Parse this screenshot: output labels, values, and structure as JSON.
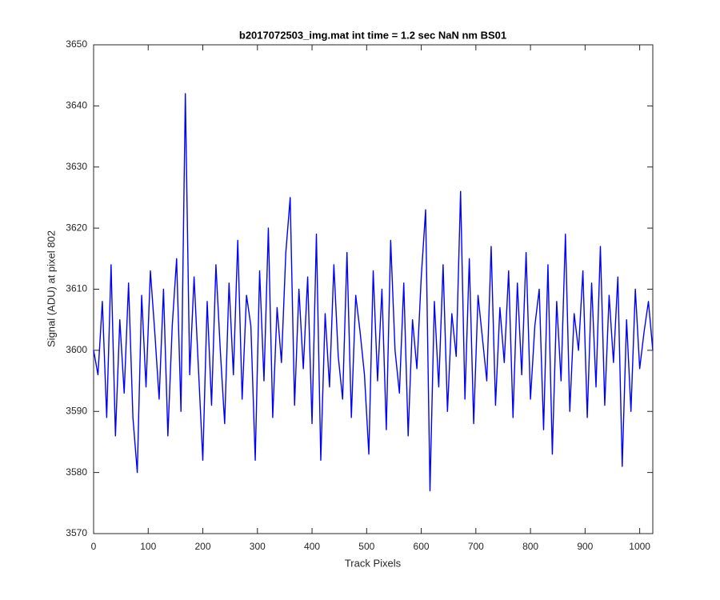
{
  "chart_data": {
    "type": "line",
    "title": "b2017072503_img.mat int time = 1.2 sec  NaN nm BS01",
    "x_label": "Track Pixels",
    "y_label": "Signal (ADU) at pixel 802",
    "x": [
      0,
      8,
      16,
      24,
      32,
      40,
      48,
      56,
      64,
      72,
      80,
      88,
      96,
      104,
      112,
      120,
      128,
      136,
      144,
      152,
      160,
      168,
      176,
      184,
      192,
      200,
      208,
      216,
      224,
      232,
      240,
      248,
      256,
      264,
      272,
      280,
      288,
      296,
      304,
      312,
      320,
      328,
      336,
      344,
      352,
      360,
      368,
      376,
      384,
      392,
      400,
      408,
      416,
      424,
      432,
      440,
      448,
      456,
      464,
      472,
      480,
      488,
      496,
      504,
      512,
      520,
      528,
      536,
      544,
      552,
      560,
      568,
      576,
      584,
      592,
      600,
      608,
      616,
      624,
      632,
      640,
      648,
      656,
      664,
      672,
      680,
      688,
      696,
      704,
      712,
      720,
      728,
      736,
      744,
      752,
      760,
      768,
      776,
      784,
      792,
      800,
      808,
      816,
      824,
      832,
      840,
      848,
      856,
      864,
      872,
      880,
      888,
      896,
      904,
      912,
      920,
      928,
      936,
      944,
      952,
      960,
      968,
      976,
      984,
      992,
      1000,
      1008,
      1016,
      1024
    ],
    "series": [
      {
        "name": "signal",
        "color": "#0000ff",
        "values": [
          3600,
          3596,
          3608,
          3589,
          3614,
          3586,
          3605,
          3593,
          3611,
          3589,
          3580,
          3609,
          3594,
          3613,
          3603,
          3592,
          3610,
          3586,
          3604,
          3615,
          3590,
          3642,
          3596,
          3612,
          3597,
          3582,
          3608,
          3591,
          3614,
          3600,
          3588,
          3611,
          3596,
          3618,
          3592,
          3609,
          3604,
          3582,
          3613,
          3595,
          3620,
          3589,
          3607,
          3598,
          3616,
          3625,
          3591,
          3610,
          3597,
          3612,
          3588,
          3619,
          3582,
          3606,
          3594,
          3614,
          3599,
          3592,
          3616,
          3589,
          3609,
          3603,
          3596,
          3583,
          3613,
          3595,
          3610,
          3587,
          3618,
          3600,
          3593,
          3611,
          3586,
          3605,
          3597,
          3612,
          3623,
          3577,
          3608,
          3594,
          3614,
          3590,
          3606,
          3599,
          3626,
          3592,
          3615,
          3588,
          3609,
          3602,
          3595,
          3617,
          3591,
          3607,
          3598,
          3613,
          3589,
          3611,
          3596,
          3616,
          3592,
          3604,
          3610,
          3587,
          3614,
          3583,
          3608,
          3595,
          3619,
          3590,
          3606,
          3600,
          3613,
          3589,
          3611,
          3594,
          3617,
          3591,
          3609,
          3598,
          3612,
          3581,
          3605,
          3590,
          3610,
          3597,
          3603,
          3608,
          3600
        ]
      }
    ],
    "xlim": [
      0,
      1024
    ],
    "xticks": [
      0,
      100,
      200,
      300,
      400,
      500,
      600,
      700,
      800,
      900,
      1000
    ],
    "ylim": [
      3570,
      3650
    ],
    "yticks": [
      3570,
      3580,
      3590,
      3600,
      3610,
      3620,
      3630,
      3640,
      3650
    ]
  }
}
